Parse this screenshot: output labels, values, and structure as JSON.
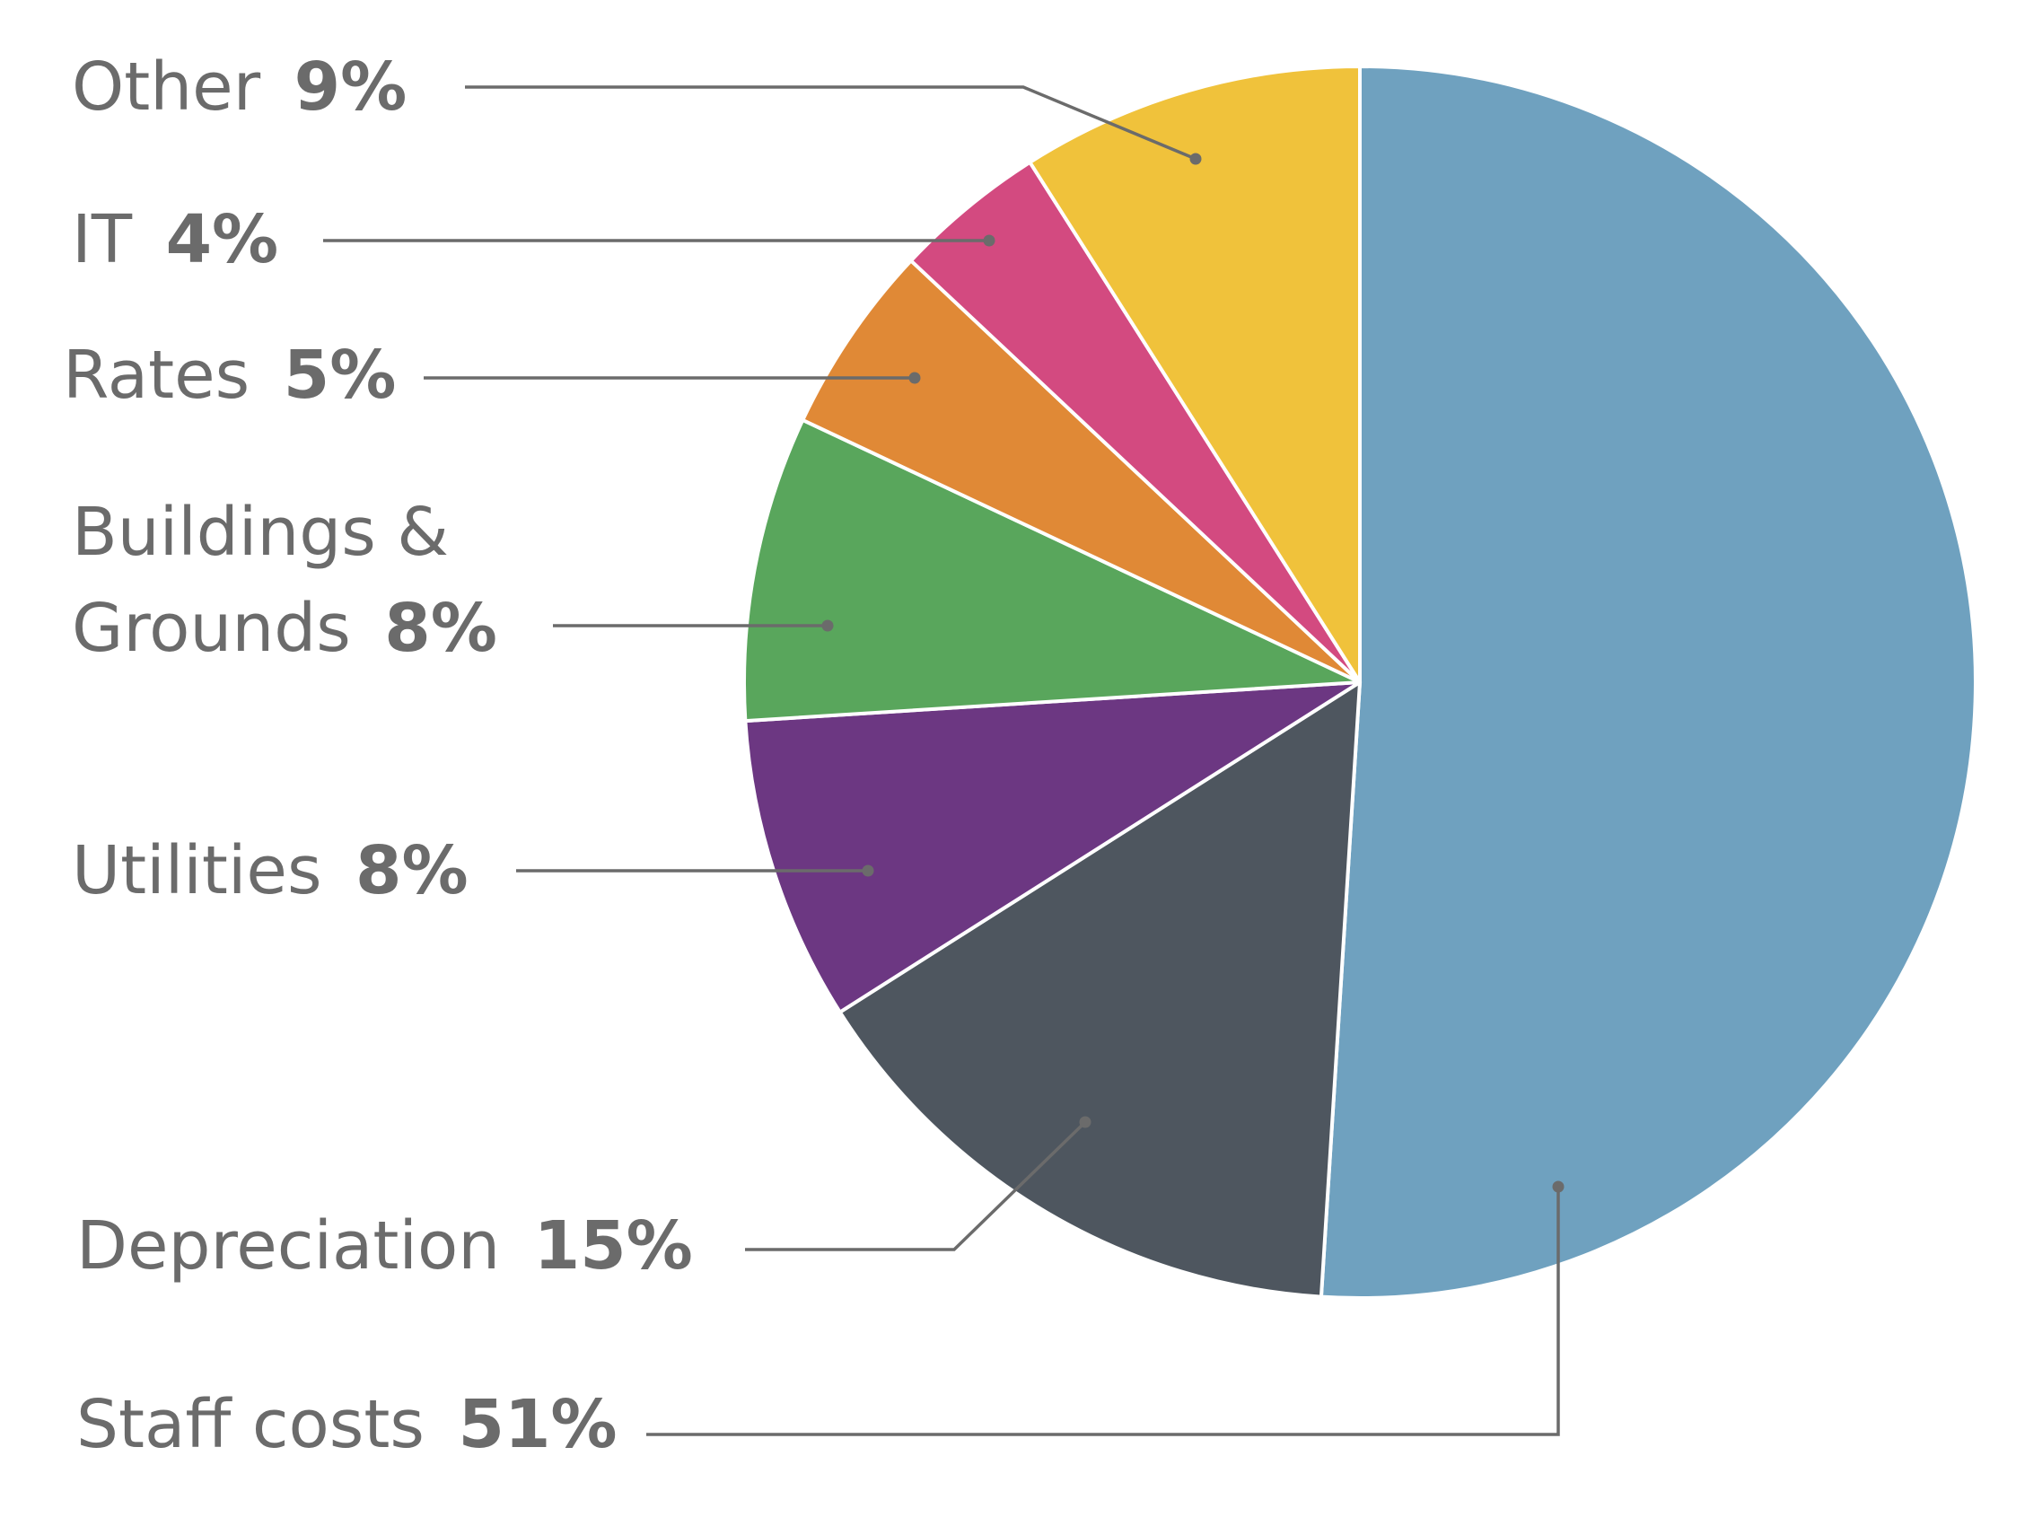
{
  "chart_data": {
    "type": "pie",
    "start": "top",
    "direction": "clockwise",
    "legend": "leader-line labels",
    "slices": [
      {
        "name": "Staff costs",
        "value": 51,
        "label": "51%",
        "color": "#6fa1bf"
      },
      {
        "name": "Depreciation",
        "value": 15,
        "label": "15%",
        "color": "#4e565f"
      },
      {
        "name": "Utilities",
        "value": 8,
        "label": "8%",
        "color": "#6c3782"
      },
      {
        "name": "Buildings & Grounds",
        "value": 8,
        "label": "8%",
        "color": "#59a65c"
      },
      {
        "name": "Rates",
        "value": 5,
        "label": "5%",
        "color": "#e08936"
      },
      {
        "name": "IT",
        "value": 4,
        "label": "4%",
        "color": "#d34a80"
      },
      {
        "name": "Other",
        "value": 9,
        "label": "9%",
        "color": "#f0c23b"
      }
    ]
  }
}
